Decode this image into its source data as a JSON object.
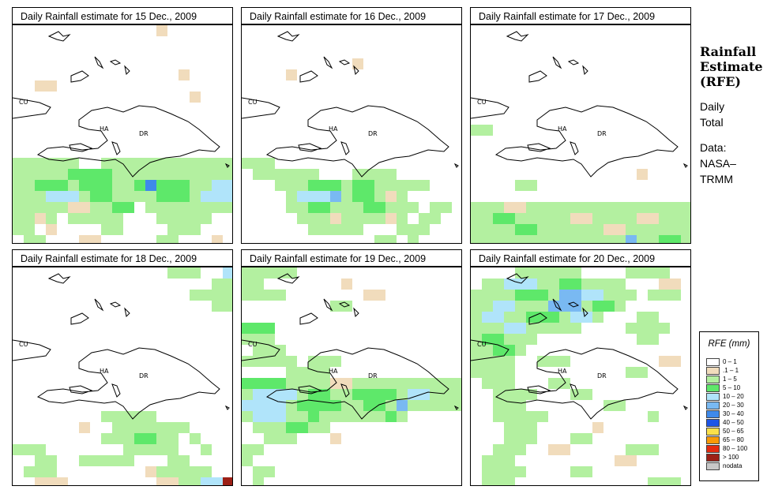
{
  "panels": [
    {
      "title": "Daily Rainfall estimate for  15 Dec., 2009",
      "id": "dec15"
    },
    {
      "title": "Daily Rainfall estimate for  16 Dec., 2009",
      "id": "dec16"
    },
    {
      "title": "Daily Rainfall estimate for  17 Dec., 2009",
      "id": "dec17"
    },
    {
      "title": "Daily Rainfall estimate for  18 Dec., 2009",
      "id": "dec18"
    },
    {
      "title": "Daily Rainfall estimate for  19 Dec., 2009",
      "id": "dec19"
    },
    {
      "title": "Daily Rainfall estimate for  20 Dec., 2009",
      "id": "dec20"
    }
  ],
  "countries": {
    "cuba": "CU",
    "haiti": "HA",
    "dominican_republic": "DR"
  },
  "sidebar": {
    "title": "Rainfall\nEstimate\n(RFE)",
    "period": "Daily\nTotal",
    "source": "Data:\nNASA–\nTRMM"
  },
  "legend": {
    "title": "RFE (mm)",
    "items": [
      {
        "label": "0 – 1",
        "color": "#ffffff"
      },
      {
        "label": ".1 – 1",
        "color": "#f1dcbc"
      },
      {
        "label": "1 – 5",
        "color": "#b3f0a0"
      },
      {
        "label": "5 – 10",
        "color": "#5ee86a"
      },
      {
        "label": "10 – 20",
        "color": "#b0e4fa"
      },
      {
        "label": "20 – 30",
        "color": "#79b9f2"
      },
      {
        "label": "30 – 40",
        "color": "#3e89ea"
      },
      {
        "label": "40 – 50",
        "color": "#1e55e6"
      },
      {
        "label": "50 – 65",
        "color": "#fbe04a"
      },
      {
        "label": "65 – 80",
        "color": "#f99a08"
      },
      {
        "label": "80 – 100",
        "color": "#e42b10"
      },
      {
        "label": "> 100",
        "color": "#9c2016"
      },
      {
        "label": "nodata",
        "color": "#c8c8c8"
      }
    ]
  }
}
